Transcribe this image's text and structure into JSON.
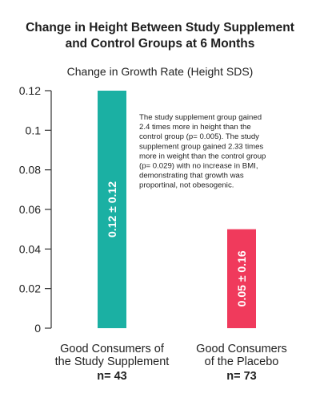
{
  "chart_data": {
    "type": "bar",
    "title_lines": [
      "Change in Height Between Study Supplement",
      "and Control Groups at 6 Months"
    ],
    "subtitle": "Change in Growth Rate (Height SDS)",
    "ylim": [
      0,
      0.12
    ],
    "yticks": [
      "0",
      "0.02",
      "0.04",
      "0.06",
      "0.08",
      "0.1",
      "0.12"
    ],
    "grid": false,
    "categories": [
      {
        "lines": [
          "Good Consumers of",
          "the Study Supplement"
        ],
        "n": "n= 43"
      },
      {
        "lines": [
          "Good Consumers",
          "of the Placebo"
        ],
        "n": "n= 73"
      }
    ],
    "values": [
      0.12,
      0.05
    ],
    "value_labels": [
      "0.12 ± 0.12",
      "0.05 ± 0.16"
    ],
    "colors": [
      "#1bb0a3",
      "#f03a5c"
    ],
    "annotation_lines": [
      "The study supplement group gained",
      "2.4 times more in height than the",
      "control group (p= 0.005). The study",
      "supplement group gained 2.33 times",
      "more in weight than the control group",
      "(p= 0.029) with no increase in BMI,",
      "demonstrating that growth was",
      "proportinal, not obesogenic."
    ]
  }
}
